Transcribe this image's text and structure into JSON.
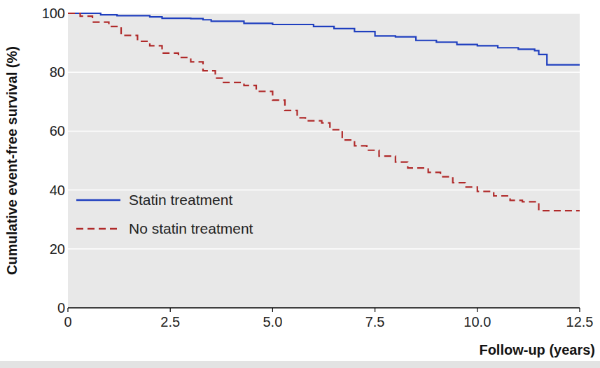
{
  "chart_data": {
    "type": "line",
    "y_label": "Cumulative event-free survival (%)",
    "x_label": "Follow-up (years)",
    "xlim": [
      0,
      12.5
    ],
    "xticks": [
      0,
      2.5,
      {
        "value": 5,
        "label": "5.0"
      },
      7.5,
      {
        "value": 10,
        "label": "10.0"
      },
      12.5
    ],
    "ylim": [
      0,
      100
    ],
    "yticks": [
      0,
      20,
      40,
      60,
      80,
      100
    ],
    "grid": true,
    "legend": "lower left",
    "series": [
      {
        "name": "Statin treatment",
        "color": "#1f3fbf",
        "line_style": "solid",
        "x": [
          0,
          0.5,
          0.8,
          1.2,
          2,
          2.3,
          3,
          3.3,
          3.5,
          4.3,
          5,
          6,
          6.5,
          7,
          7.5,
          8,
          8.5,
          9,
          9.5,
          10,
          10.5,
          11,
          11.4,
          11.5,
          11.7,
          12.5
        ],
        "values": [
          100,
          100,
          99.5,
          99.2,
          98.8,
          98.3,
          98.2,
          97.8,
          97.3,
          96.6,
          96.2,
          95.5,
          94.8,
          93.8,
          92.3,
          92,
          90.8,
          90.2,
          89.4,
          89,
          88.3,
          87.8,
          87.3,
          86,
          82.5,
          82.5
        ]
      },
      {
        "name": "No statin treatment",
        "color": "#b02a2a",
        "line_style": "dashed",
        "x": [
          0,
          0.3,
          0.6,
          1,
          1.3,
          1.7,
          2,
          2.3,
          2.7,
          3,
          3.3,
          3.6,
          3.8,
          4.3,
          4.6,
          5,
          5.3,
          5.6,
          5.8,
          6.2,
          6.4,
          6.7,
          7,
          7.3,
          7.6,
          8,
          8.3,
          8.8,
          9.1,
          9.4,
          9.7,
          10,
          10.4,
          10.8,
          11.1,
          11.5,
          12.5
        ],
        "values": [
          100,
          99,
          97,
          95.5,
          92.5,
          90.5,
          89,
          86.5,
          85,
          83.5,
          80.5,
          78,
          76.5,
          75.5,
          73.5,
          70.5,
          67,
          64.5,
          63.5,
          62.8,
          60.5,
          57,
          55,
          53.5,
          51.5,
          49.5,
          47.5,
          46,
          44.5,
          42.5,
          41,
          39.5,
          38,
          36.5,
          36,
          33,
          33
        ]
      }
    ]
  }
}
